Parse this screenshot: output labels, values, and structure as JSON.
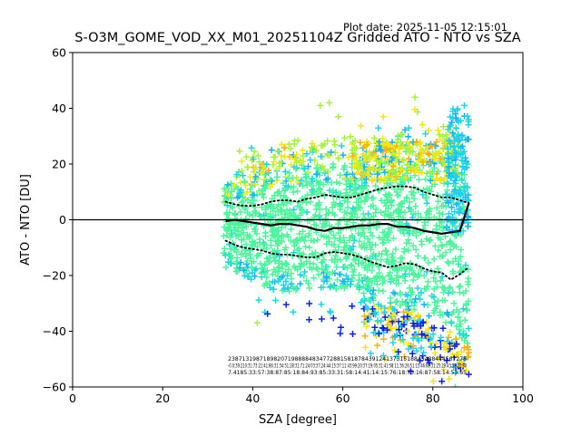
{
  "header": {
    "plot_date": "Plot date: 2025-11-05 12:15:01"
  },
  "chart_data": {
    "type": "scatter",
    "title": "S-O3M_GOME_VOD_XX_M01_20251104Z Gridded ATO - NTO vs SZA",
    "xlabel": "SZA [degree]",
    "ylabel": "ATO - NTO [DU]",
    "xlim": [
      0,
      100
    ],
    "ylim": [
      -60,
      60
    ],
    "x_ticks": [
      0,
      20,
      40,
      60,
      80,
      100
    ],
    "y_ticks": [
      -60,
      -40,
      -20,
      0,
      20,
      40,
      60
    ],
    "grid": false,
    "marker": "+",
    "zero_line": 0,
    "colors": {
      "bulk": "#4cf59b",
      "cyan": "#1fd3e8",
      "sky": "#16b0f5",
      "lime": "#a5f23c",
      "yellow": "#f2e614",
      "orange": "#f5b110",
      "blue": "#0a1ff0",
      "line": "#000000"
    },
    "scatter_envelope": {
      "x_range": [
        33.5,
        88
      ],
      "upper": [
        [
          34,
          13
        ],
        [
          40,
          15
        ],
        [
          46,
          18
        ],
        [
          52,
          20
        ],
        [
          58,
          21
        ],
        [
          64,
          22
        ],
        [
          70,
          24
        ],
        [
          76,
          26
        ],
        [
          82,
          27
        ],
        [
          86,
          25
        ],
        [
          88,
          22
        ]
      ],
      "lower": [
        [
          34,
          -17
        ],
        [
          40,
          -22
        ],
        [
          46,
          -26
        ],
        [
          52,
          -25
        ],
        [
          58,
          -25
        ],
        [
          64,
          -26
        ],
        [
          66,
          -30
        ],
        [
          70,
          -31
        ],
        [
          76,
          -33
        ],
        [
          80,
          -36
        ],
        [
          84,
          -40
        ],
        [
          88,
          -45
        ]
      ]
    },
    "series": [
      {
        "name": "median",
        "style": "solid",
        "x": [
          34,
          36,
          38,
          40,
          42,
          44,
          46,
          48,
          50,
          52,
          54,
          56,
          58,
          60,
          62,
          64,
          66,
          68,
          70,
          72,
          74,
          76,
          78,
          80,
          82,
          84,
          86,
          88
        ],
        "y": [
          -0.5,
          0,
          -0.5,
          -1,
          -1.5,
          -2,
          -1.5,
          -1.5,
          -2,
          -2.5,
          -3.5,
          -4,
          -3,
          -3,
          -2.5,
          -2,
          -2,
          -1.5,
          -1.5,
          -2.5,
          -2.5,
          -3,
          -4,
          -4.5,
          -5,
          -4.5,
          -4,
          6
        ]
      },
      {
        "name": "upper-percentile",
        "style": "dotted",
        "x": [
          34,
          36,
          38,
          40,
          42,
          44,
          46,
          48,
          50,
          52,
          54,
          56,
          58,
          60,
          62,
          64,
          66,
          68,
          70,
          72,
          74,
          76,
          78,
          80,
          82,
          84,
          86,
          88
        ],
        "y": [
          6.5,
          5.5,
          5,
          5,
          5.5,
          6.5,
          7,
          7,
          6.5,
          7.5,
          8,
          9,
          8.5,
          8,
          8,
          9,
          10,
          11,
          11.5,
          12,
          12,
          11.5,
          10,
          9,
          8,
          8,
          7,
          6
        ]
      },
      {
        "name": "lower-percentile",
        "style": "dotted",
        "x": [
          34,
          36,
          38,
          40,
          42,
          44,
          46,
          48,
          50,
          52,
          54,
          56,
          58,
          60,
          62,
          64,
          66,
          68,
          70,
          72,
          74,
          76,
          78,
          80,
          82,
          84,
          86,
          88
        ],
        "y": [
          -7.5,
          -9,
          -10,
          -10.5,
          -11,
          -12,
          -12.5,
          -12.5,
          -13,
          -13.5,
          -13.5,
          -12,
          -11.5,
          -12,
          -12.5,
          -13.5,
          -15,
          -16,
          -17,
          -16.5,
          -15.5,
          -16,
          -17.5,
          -18.5,
          -19,
          -21.5,
          -19.5,
          -17
        ]
      }
    ],
    "bin_annotation_rows": [
      "23871319871898207198888483477288158187843912413731518845488444567278",
      "-0.0:39:210:31:73:21:41:86:31:34:51:28:31:71:24:03:37:24:44:15:37:11:43:99:20:37:19:05:31:41:58:11:36:26:51:15:46:68:31:25:29:43:59:22:80",
      "7.4185:33:57:38:87:85:18:84:93:85:33:31:58:14:41:14:15:76:18:73:16:87:58:14:53:65"
    ]
  }
}
